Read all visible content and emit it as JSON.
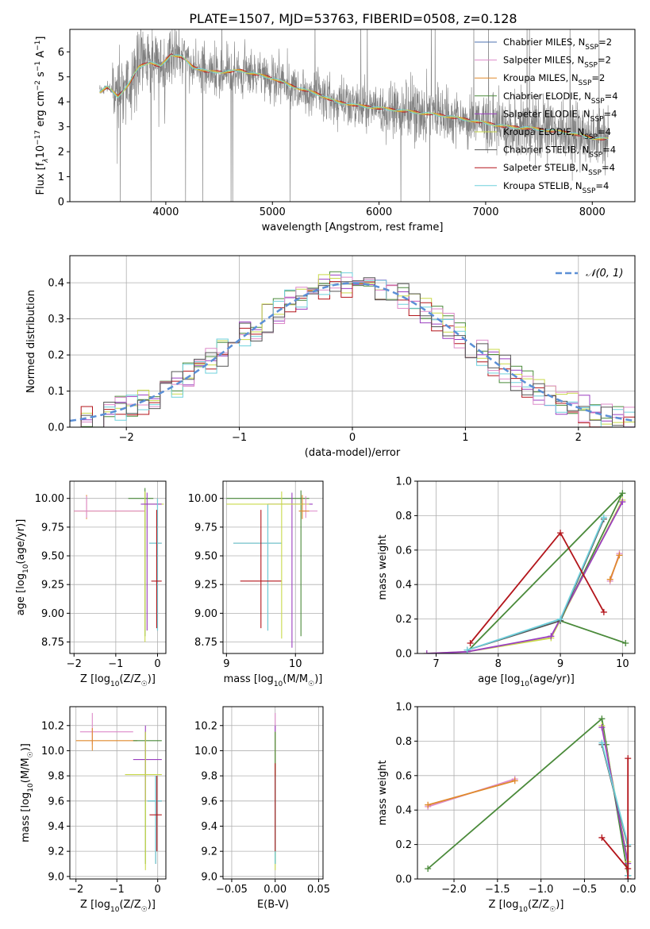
{
  "figure": {
    "title": "PLATE=1507, MJD=53763, FIBERID=0508, z=0.128",
    "series_colors": {
      "Chabrier MILES": "#4c72b0",
      "Salpeter MILES": "#dd8ac9",
      "Kroupa MILES": "#e08a2c",
      "Chabrier ELODIE": "#4a8a3a",
      "Salpeter ELODIE": "#9b3fc0",
      "Kroupa ELODIE": "#c9d94a",
      "Chabrier STELIB": "#555555",
      "Salpeter STELIB": "#b3151b",
      "Kroupa STELIB": "#6fd0dc",
      "data": "#808080",
      "gaussian": "#5b8fd6"
    }
  },
  "chart_data": [
    {
      "id": "spectrum",
      "type": "line",
      "xlabel": "wavelength [Angstrom, rest frame]",
      "ylabel": "Flux [f",
      "ylabel_sub": "λ",
      "ylabel_tail": "10",
      "ylabel_sup1": "−17",
      "ylabel_tail2": " erg cm",
      "ylabel_sup2": "−2",
      "ylabel_tail3": " s",
      "ylabel_sup3": "−1",
      "ylabel_tail4": " A",
      "ylabel_sup4": "−1",
      "ylabel_end": "]",
      "xlim": [
        3100,
        8400
      ],
      "ylim": [
        0,
        6.9
      ],
      "xticks": [
        4000,
        5000,
        6000,
        7000,
        8000
      ],
      "yticks": [
        0,
        1,
        2,
        3,
        4,
        5,
        6
      ],
      "grid": false,
      "legend_position": "top-right",
      "legend": [
        {
          "label": "Chabrier MILES, N",
          "sub": "SSP",
          "tail": "=2",
          "color": "#4c72b0"
        },
        {
          "label": "Salpeter MILES, N",
          "sub": "SSP",
          "tail": "=2",
          "color": "#dd8ac9"
        },
        {
          "label": "Kroupa MILES, N",
          "sub": "SSP",
          "tail": "=2",
          "color": "#e08a2c"
        },
        {
          "label": "Chabrier ELODIE, N",
          "sub": "SSP",
          "tail": "=4",
          "color": "#4a8a3a"
        },
        {
          "label": "Salpeter ELODIE, N",
          "sub": "SSP",
          "tail": "=4",
          "color": "#9b3fc0"
        },
        {
          "label": "Kroupa ELODIE, N",
          "sub": "SSP",
          "tail": "=4",
          "color": "#c9d94a"
        },
        {
          "label": "Chabrier STELIB, N",
          "sub": "SSP",
          "tail": "=4",
          "color": "#555555"
        },
        {
          "label": "Salpeter STELIB, N",
          "sub": "SSP",
          "tail": "=4",
          "color": "#b3151b"
        },
        {
          "label": "Kroupa STELIB, N",
          "sub": "SSP",
          "tail": "=4",
          "color": "#6fd0dc"
        }
      ],
      "data_range": [
        3380,
        8150
      ],
      "continuum": [
        [
          3380,
          4.4
        ],
        [
          3450,
          4.6
        ],
        [
          3550,
          4.2
        ],
        [
          3650,
          4.7
        ],
        [
          3750,
          5.4
        ],
        [
          3850,
          5.6
        ],
        [
          3950,
          5.4
        ],
        [
          4050,
          5.9
        ],
        [
          4150,
          5.8
        ],
        [
          4250,
          5.4
        ],
        [
          4400,
          5.2
        ],
        [
          4550,
          5.2
        ],
        [
          4700,
          5.25
        ],
        [
          4850,
          5.1
        ],
        [
          5000,
          4.95
        ],
        [
          5200,
          4.6
        ],
        [
          5400,
          4.35
        ],
        [
          5600,
          4.0
        ],
        [
          5800,
          3.85
        ],
        [
          6000,
          3.75
        ],
        [
          6200,
          3.65
        ],
        [
          6400,
          3.55
        ],
        [
          6600,
          3.45
        ],
        [
          6800,
          3.3
        ],
        [
          7000,
          3.15
        ],
        [
          7200,
          3.0
        ],
        [
          7400,
          2.95
        ],
        [
          7600,
          2.85
        ],
        [
          7800,
          2.75
        ],
        [
          8000,
          2.55
        ],
        [
          8150,
          2.5
        ]
      ]
    },
    {
      "id": "residuals",
      "type": "line",
      "xlabel": "(data-model)/error",
      "ylabel": "Normed distribution",
      "xlim": [
        -2.5,
        2.5
      ],
      "ylim": [
        0,
        0.475
      ],
      "xticks": [
        -2,
        -1,
        0,
        1,
        2
      ],
      "yticks": [
        0.0,
        0.1,
        0.2,
        0.3,
        0.4
      ],
      "grid": true,
      "legend_position": "top-right",
      "legend_label": "𝒩(0, 1)",
      "bin_width": 0.1
    },
    {
      "id": "age_vs_Z",
      "type": "scatter",
      "xlabel": "Z [log",
      "xlabel_sub": "10",
      "xlabel_tail": "(Z/Z",
      "xlabel_sub2": "☉",
      "xlabel_end": ")]",
      "ylabel": "age  [log",
      "ylabel_sub": "10",
      "ylabel_tail": "(age/yr)]",
      "xlim": [
        -2.1,
        0.2
      ],
      "ylim": [
        8.65,
        10.15
      ],
      "xticks": [
        -2,
        -1,
        0
      ],
      "yticks": [
        8.75,
        9.0,
        9.25,
        9.5,
        9.75,
        10.0
      ],
      "grid": true,
      "points": [
        {
          "series": "Kroupa MILES",
          "x": -1.7,
          "y": 9.89,
          "xe": [
            -2.0,
            -0.3
          ],
          "ye": [
            9.82,
            10.03
          ]
        },
        {
          "series": "Salpeter MILES",
          "x": -1.7,
          "y": 9.89,
          "xe": [
            -2.0,
            -0.3
          ],
          "ye": [
            9.83,
            10.02
          ]
        },
        {
          "series": "Chabrier ELODIE",
          "x": -0.3,
          "y": 10.0,
          "xe": [
            -0.7,
            -0.1
          ],
          "ye": [
            8.8,
            10.09
          ]
        },
        {
          "series": "Kroupa ELODIE",
          "x": -0.3,
          "y": 9.95,
          "xe": [
            -0.35,
            0.15
          ],
          "ye": [
            8.75,
            10.06
          ]
        },
        {
          "series": "Salpeter ELODIE",
          "x": -0.25,
          "y": 9.95,
          "xe": [
            -0.4,
            0.1
          ],
          "ye": [
            8.85,
            10.05
          ]
        },
        {
          "series": "Chabrier STELIB",
          "x": 0.0,
          "y": 9.61,
          "xe": [
            -0.2,
            0.1
          ],
          "ye": [
            8.85,
            10.0
          ]
        },
        {
          "series": "Kroupa STELIB",
          "x": 0.0,
          "y": 9.61,
          "xe": [
            -0.2,
            0.1
          ],
          "ye": [
            8.85,
            10.0
          ]
        },
        {
          "series": "Salpeter STELIB",
          "x": -0.02,
          "y": 9.28,
          "xe": [
            -0.15,
            0.1
          ],
          "ye": [
            8.87,
            9.9
          ]
        }
      ]
    },
    {
      "id": "age_vs_mass",
      "type": "scatter",
      "xlabel": "mass [log",
      "xlabel_sub": "10",
      "xlabel_tail": "(M/M",
      "xlabel_sub2": "☉",
      "xlabel_end": ")]",
      "xlim": [
        8.95,
        10.4
      ],
      "ylim": [
        8.65,
        10.15
      ],
      "xticks": [
        9,
        10
      ],
      "yticks": [
        8.75,
        9.0,
        9.25,
        9.5,
        9.75,
        10.0
      ],
      "grid": true,
      "points": [
        {
          "series": "Chabrier STELIB",
          "x": 9.6,
          "y": 9.61,
          "xe": [
            9.1,
            9.8
          ],
          "ye": [
            8.85,
            9.95
          ]
        },
        {
          "series": "Kroupa STELIB",
          "x": 9.6,
          "y": 9.61,
          "xe": [
            9.1,
            9.8
          ],
          "ye": [
            8.85,
            9.95
          ]
        },
        {
          "series": "Salpeter STELIB",
          "x": 9.5,
          "y": 9.28,
          "xe": [
            9.2,
            9.8
          ],
          "ye": [
            8.87,
            9.9
          ]
        },
        {
          "series": "Chabrier ELODIE",
          "x": 10.08,
          "y": 10.0,
          "xe": [
            9.0,
            10.2
          ],
          "ye": [
            8.8,
            10.07
          ]
        },
        {
          "series": "Salpeter ELODIE",
          "x": 9.95,
          "y": 9.95,
          "xe": [
            9.6,
            10.25
          ],
          "ye": [
            8.7,
            10.05
          ]
        },
        {
          "series": "Kroupa ELODIE",
          "x": 9.8,
          "y": 9.95,
          "xe": [
            9.0,
            10.2
          ],
          "ye": [
            8.78,
            10.06
          ]
        },
        {
          "series": "Salpeter MILES",
          "x": 10.15,
          "y": 9.89,
          "xe": [
            10.05,
            10.32
          ],
          "ye": [
            9.83,
            10.02
          ]
        },
        {
          "series": "Kroupa MILES",
          "x": 10.1,
          "y": 9.89,
          "xe": [
            10.05,
            10.2
          ],
          "ye": [
            9.82,
            10.03
          ]
        }
      ]
    },
    {
      "id": "weight_vs_age",
      "type": "line",
      "xlabel": "age  [log",
      "xlabel_sub": "10",
      "xlabel_tail": "(age/yr)]",
      "ylabel": "mass weight",
      "xlim": [
        6.7,
        10.2
      ],
      "ylim": [
        0,
        1.0
      ],
      "xticks": [
        7,
        8,
        9,
        10
      ],
      "yticks": [
        0.0,
        0.2,
        0.4,
        0.6,
        0.8,
        1.0
      ],
      "grid": true,
      "series": [
        {
          "name": "Salpeter MILES",
          "x": [
            9.8,
            9.95
          ],
          "y": [
            0.42,
            0.58
          ]
        },
        {
          "name": "Kroupa MILES",
          "x": [
            9.8,
            9.95
          ],
          "y": [
            0.43,
            0.57
          ]
        },
        {
          "name": "Chabrier ELODIE",
          "x": [
            7.5,
            10.0,
            9.0,
            10.05
          ],
          "y": [
            0.01,
            0.93,
            0.19,
            0.06
          ]
        },
        {
          "name": "Kroupa ELODIE",
          "x": [
            6.85,
            7.5,
            8.85,
            10.0
          ],
          "y": [
            0.0,
            0.01,
            0.09,
            0.89
          ]
        },
        {
          "name": "Salpeter ELODIE",
          "x": [
            6.85,
            7.5,
            8.85,
            10.0
          ],
          "y": [
            0.0,
            0.01,
            0.1,
            0.88
          ]
        },
        {
          "name": "Chabrier STELIB",
          "x": [
            7.5,
            9.0,
            9.7
          ],
          "y": [
            0.02,
            0.19,
            0.78
          ]
        },
        {
          "name": "Kroupa STELIB",
          "x": [
            7.5,
            9.0,
            9.7
          ],
          "y": [
            0.02,
            0.2,
            0.79
          ]
        },
        {
          "name": "Salpeter STELIB",
          "x": [
            7.55,
            9.0,
            9.7
          ],
          "y": [
            0.06,
            0.7,
            0.24
          ]
        }
      ]
    },
    {
      "id": "mass_vs_Z",
      "type": "scatter",
      "xlabel": "Z [log",
      "xlabel_sub": "10",
      "xlabel_tail": "(Z/Z",
      "xlabel_sub2": "☉",
      "xlabel_end": ")]",
      "ylabel": "mass [log",
      "ylabel_sub": "10",
      "ylabel_tail": "(M/M",
      "ylabel_sub2": "☉",
      "ylabel_end": ")]",
      "xlim": [
        -2.15,
        0.2
      ],
      "ylim": [
        8.98,
        10.35
      ],
      "xticks": [
        -2,
        -1,
        0
      ],
      "yticks": [
        9.0,
        9.2,
        9.4,
        9.6,
        9.8,
        10.0,
        10.2
      ],
      "grid": true,
      "points": [
        {
          "series": "Salpeter MILES",
          "x": -1.6,
          "y": 10.15,
          "xe": [
            -1.9,
            -0.6
          ],
          "ye": [
            10.05,
            10.3
          ]
        },
        {
          "series": "Kroupa MILES",
          "x": -1.6,
          "y": 10.08,
          "xe": [
            -2.0,
            -0.5
          ],
          "ye": [
            10.0,
            10.18
          ]
        },
        {
          "series": "Chabrier ELODIE",
          "x": -0.3,
          "y": 10.08,
          "xe": [
            -0.6,
            0.1
          ],
          "ye": [
            9.1,
            10.15
          ]
        },
        {
          "series": "Salpeter ELODIE",
          "x": -0.3,
          "y": 9.93,
          "xe": [
            -0.6,
            0.1
          ],
          "ye": [
            9.6,
            10.2
          ]
        },
        {
          "series": "Kroupa ELODIE",
          "x": -0.3,
          "y": 9.81,
          "xe": [
            -0.8,
            0.1
          ],
          "ye": [
            9.05,
            10.15
          ]
        },
        {
          "series": "Chabrier STELIB",
          "x": -0.05,
          "y": 9.6,
          "xe": [
            -0.25,
            0.1
          ],
          "ye": [
            9.1,
            9.8
          ]
        },
        {
          "series": "Kroupa STELIB",
          "x": -0.05,
          "y": 9.6,
          "xe": [
            -0.25,
            0.1
          ],
          "ye": [
            9.1,
            9.8
          ]
        },
        {
          "series": "Salpeter STELIB",
          "x": -0.02,
          "y": 9.49,
          "xe": [
            -0.2,
            0.1
          ],
          "ye": [
            9.2,
            9.8
          ]
        }
      ]
    },
    {
      "id": "mass_vs_ebv",
      "type": "scatter",
      "xlabel": "E(B-V)",
      "xlim": [
        -0.06,
        0.055
      ],
      "ylim": [
        8.98,
        10.35
      ],
      "xticks": [
        -0.05,
        0.0,
        0.05
      ],
      "xtick_labels": [
        "−0.05",
        "0.00",
        "0.05"
      ],
      "yticks": [
        9.0,
        9.2,
        9.4,
        9.6,
        9.8,
        10.0,
        10.2
      ],
      "grid": true,
      "points": [
        {
          "series": "Salpeter MILES",
          "x": 0.0,
          "y": 10.15,
          "xe": [
            0,
            0
          ],
          "ye": [
            10.0,
            10.3
          ]
        },
        {
          "series": "Salpeter ELODIE",
          "x": 0.0,
          "y": 9.93,
          "xe": [
            0,
            0
          ],
          "ye": [
            9.6,
            10.2
          ]
        },
        {
          "series": "Kroupa ELODIE",
          "x": 0.0,
          "y": 9.81,
          "xe": [
            0,
            0
          ],
          "ye": [
            9.05,
            10.15
          ]
        },
        {
          "series": "Chabrier ELODIE",
          "x": 0.0,
          "y": 10.08,
          "xe": [
            0,
            0
          ],
          "ye": [
            9.1,
            10.15
          ]
        },
        {
          "series": "Kroupa STELIB",
          "x": 0.0,
          "y": 9.6,
          "xe": [
            0,
            0
          ],
          "ye": [
            9.1,
            9.8
          ]
        },
        {
          "series": "Salpeter STELIB",
          "x": 0.0,
          "y": 9.49,
          "xe": [
            0,
            0
          ],
          "ye": [
            9.2,
            9.9
          ]
        }
      ]
    },
    {
      "id": "weight_vs_Z",
      "type": "line",
      "xlabel": "Z [log",
      "xlabel_sub": "10",
      "xlabel_tail": "(Z/Z",
      "xlabel_sub2": "☉",
      "xlabel_end": ")]",
      "ylabel": "mass weight",
      "xlim": [
        -2.42,
        0.08
      ],
      "ylim": [
        0,
        1.0
      ],
      "xticks": [
        -2.0,
        -1.5,
        -1.0,
        -0.5,
        0.0
      ],
      "xtick_labels": [
        "−2.0",
        "−1.5",
        "−1.0",
        "−0.5",
        "0.0"
      ],
      "yticks": [
        0.0,
        0.2,
        0.4,
        0.6,
        0.8,
        1.0
      ],
      "grid": true,
      "series": [
        {
          "name": "Salpeter MILES",
          "x": [
            -2.3,
            -1.3
          ],
          "y": [
            0.42,
            0.58
          ]
        },
        {
          "name": "Kroupa MILES",
          "x": [
            -2.3,
            -1.3
          ],
          "y": [
            0.43,
            0.57
          ]
        },
        {
          "name": "Chabrier ELODIE",
          "x": [
            -2.3,
            -0.3,
            -0.25,
            0.0
          ],
          "y": [
            0.06,
            0.93,
            0.78,
            0.02
          ]
        },
        {
          "name": "Kroupa ELODIE",
          "x": [
            -0.3,
            0.0,
            0.0
          ],
          "y": [
            0.89,
            0.1,
            0.0
          ]
        },
        {
          "name": "Salpeter ELODIE",
          "x": [
            -0.3,
            0.0,
            0.0
          ],
          "y": [
            0.88,
            0.09,
            0.0
          ]
        },
        {
          "name": "Chabrier STELIB",
          "x": [
            -0.3,
            0.0,
            0.0
          ],
          "y": [
            0.78,
            0.19,
            0.02
          ]
        },
        {
          "name": "Kroupa STELIB",
          "x": [
            -0.3,
            0.0,
            0.0
          ],
          "y": [
            0.79,
            0.2,
            0.02
          ]
        },
        {
          "name": "Salpeter STELIB",
          "x": [
            -0.3,
            0.0,
            0.0,
            0.0
          ],
          "y": [
            0.24,
            0.06,
            0.7,
            0.0
          ]
        }
      ]
    }
  ]
}
